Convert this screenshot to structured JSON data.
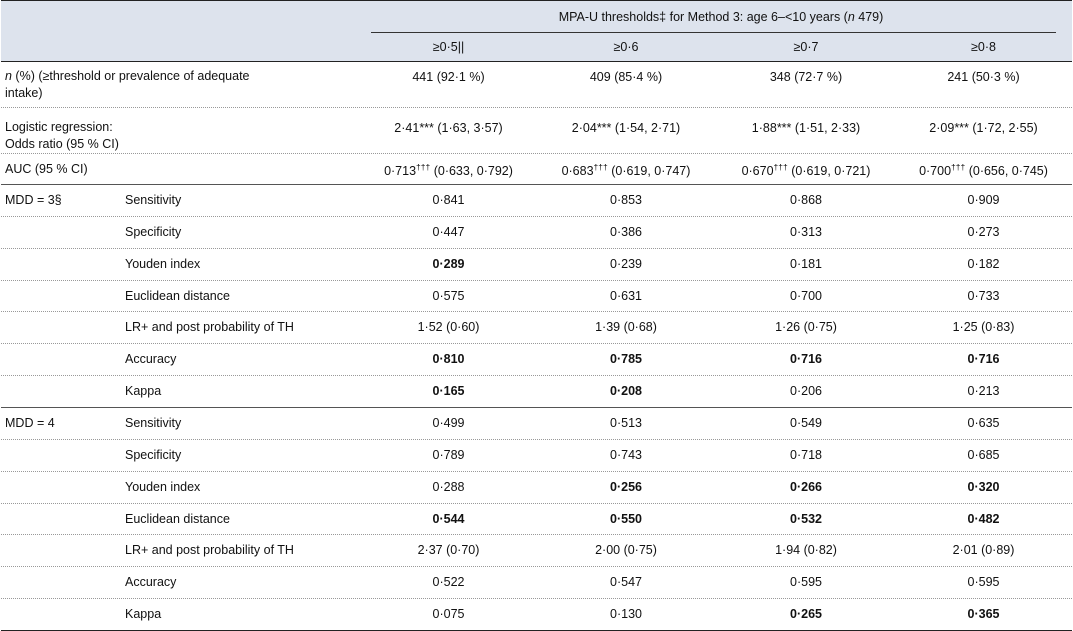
{
  "header": {
    "span_title_pre": "MPA-U thresholds‡ for Method 3: age 6–<10 years (",
    "span_title_n": "n",
    "span_title_post": " 479)",
    "columns": [
      "≥0·5||",
      "≥0·6",
      "≥0·7",
      "≥0·8"
    ]
  },
  "rows_top": {
    "n_label_italic": "n",
    "n_label_line1": " (%) (≥threshold or prevalence of adequate",
    "n_label_line2": "intake)",
    "n_values": [
      "441 (92·1 %)",
      "409 (85·4 %)",
      "348 (72·7 %)",
      "241 (50·3 %)"
    ],
    "lr_label_line1": "Logistic regression:",
    "lr_label_line2": "Odds ratio (95 % CI)",
    "lr_values": [
      {
        "main": "2·41***",
        "ci": " (1·63, 3·57)"
      },
      {
        "main": "2·04***",
        "ci": " (1·54, 2·71)"
      },
      {
        "main": "1·88***",
        "ci": " (1·51, 2·33)"
      },
      {
        "main": "2·09***",
        "ci": " (1·72, 2·55)"
      }
    ],
    "auc_label": "AUC (95 % CI)",
    "auc_values": [
      {
        "main": "0·713",
        "sup": "†††",
        "ci": " (0·633, 0·792)"
      },
      {
        "main": "0·683",
        "sup": "†††",
        "ci": " (0·619, 0·747)"
      },
      {
        "main": "0·670",
        "sup": "†††",
        "ci": " (0·619, 0·721)"
      },
      {
        "main": "0·700",
        "sup": "†††",
        "ci": " (0·656, 0·745)"
      }
    ]
  },
  "groups": [
    {
      "label": "MDD = 3§",
      "rows": [
        {
          "metric": "Sensitivity",
          "values": [
            "0·841",
            "0·853",
            "0·868",
            "0·909"
          ],
          "bold": [
            false,
            false,
            false,
            false
          ]
        },
        {
          "metric": "Specificity",
          "values": [
            "0·447",
            "0·386",
            "0·313",
            "0·273"
          ],
          "bold": [
            false,
            false,
            false,
            false
          ]
        },
        {
          "metric": "Youden index",
          "values": [
            "0·289",
            "0·239",
            "0·181",
            "0·182"
          ],
          "bold": [
            true,
            false,
            false,
            false
          ]
        },
        {
          "metric": "Euclidean distance",
          "values": [
            "0·575",
            "0·631",
            "0·700",
            "0·733"
          ],
          "bold": [
            false,
            false,
            false,
            false
          ]
        },
        {
          "metric": "LR+ and post probability of TH",
          "values": [
            "1·52 (0·60)",
            "1·39 (0·68)",
            "1·26 (0·75)",
            "1·25 (0·83)"
          ],
          "bold": [
            false,
            false,
            false,
            false
          ]
        },
        {
          "metric": "Accuracy",
          "values": [
            "0·810",
            "0·785",
            "0·716",
            "0·716"
          ],
          "bold": [
            true,
            true,
            true,
            true
          ]
        },
        {
          "metric": "Kappa",
          "values": [
            "0·165",
            "0·208",
            "0·206",
            "0·213"
          ],
          "bold": [
            true,
            true,
            false,
            false
          ]
        }
      ]
    },
    {
      "label": "MDD = 4",
      "rows": [
        {
          "metric": "Sensitivity",
          "values": [
            "0·499",
            "0·513",
            "0·549",
            "0·635"
          ],
          "bold": [
            false,
            false,
            false,
            false
          ]
        },
        {
          "metric": "Specificity",
          "values": [
            "0·789",
            "0·743",
            "0·718",
            "0·685"
          ],
          "bold": [
            false,
            false,
            false,
            false
          ]
        },
        {
          "metric": "Youden index",
          "values": [
            "0·288",
            "0·256",
            "0·266",
            "0·320"
          ],
          "bold": [
            false,
            true,
            true,
            true
          ]
        },
        {
          "metric": "Euclidean distance",
          "values": [
            "0·544",
            "0·550",
            "0·532",
            "0·482"
          ],
          "bold": [
            true,
            true,
            true,
            true
          ]
        },
        {
          "metric": "LR+ and post probability of TH",
          "values": [
            "2·37 (0·70)",
            "2·00 (0·75)",
            "1·94 (0·82)",
            "2·01 (0·89)"
          ],
          "bold": [
            false,
            false,
            false,
            false
          ]
        },
        {
          "metric": "Accuracy",
          "values": [
            "0·522",
            "0·547",
            "0·595",
            "0·595"
          ],
          "bold": [
            false,
            false,
            false,
            false
          ]
        },
        {
          "metric": "Kappa",
          "values": [
            "0·075",
            "0·130",
            "0·265",
            "0·365"
          ],
          "bold": [
            false,
            false,
            true,
            true
          ]
        }
      ]
    }
  ]
}
